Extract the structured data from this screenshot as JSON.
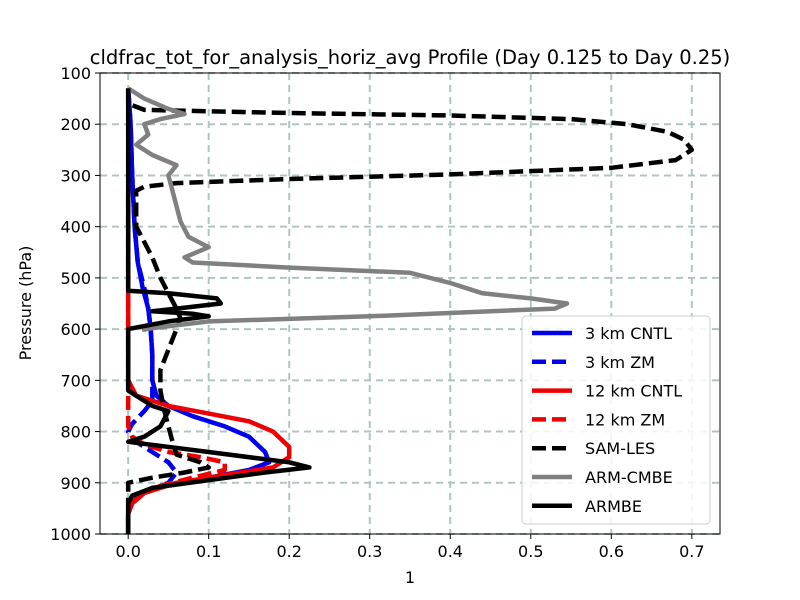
{
  "chart_data": {
    "type": "line",
    "title": "cldfrac_tot_for_analysis_horiz_avg Profile (Day 0.125 to Day 0.25)",
    "xlabel": "1",
    "ylabel": "Pressure (hPa)",
    "xlim": [
      -0.035,
      0.735
    ],
    "ylim": [
      1000,
      100
    ],
    "y_inverted": true,
    "xticks": [
      0.0,
      0.1,
      0.2,
      0.3,
      0.4,
      0.5,
      0.6,
      0.7
    ],
    "xtick_labels": [
      "0.0",
      "0.1",
      "0.2",
      "0.3",
      "0.4",
      "0.5",
      "0.6",
      "0.7"
    ],
    "yticks": [
      100,
      200,
      300,
      400,
      500,
      600,
      700,
      800,
      900,
      1000
    ],
    "ytick_labels": [
      "100",
      "200",
      "300",
      "400",
      "500",
      "600",
      "700",
      "800",
      "900",
      "1000"
    ],
    "grid": true,
    "legend_position": "lower-right",
    "series": [
      {
        "name": "3 km CNTL",
        "color": "#0000ee",
        "dash": "solid",
        "points": [
          [
            0.0,
            130
          ],
          [
            0.003,
            200
          ],
          [
            0.005,
            300
          ],
          [
            0.008,
            400
          ],
          [
            0.012,
            470
          ],
          [
            0.018,
            520
          ],
          [
            0.025,
            560
          ],
          [
            0.028,
            600
          ],
          [
            0.03,
            650
          ],
          [
            0.03,
            700
          ],
          [
            0.035,
            730
          ],
          [
            0.05,
            750
          ],
          [
            0.08,
            770
          ],
          [
            0.12,
            790
          ],
          [
            0.15,
            810
          ],
          [
            0.17,
            840
          ],
          [
            0.175,
            860
          ],
          [
            0.15,
            875
          ],
          [
            0.1,
            890
          ],
          [
            0.05,
            905
          ],
          [
            0.015,
            920
          ],
          [
            0.005,
            940
          ],
          [
            0.0,
            960
          ],
          [
            0.0,
            1000
          ]
        ]
      },
      {
        "name": "3 km ZM",
        "color": "#0000ee",
        "dash": "dashed",
        "points": [
          [
            0.0,
            130
          ],
          [
            0.003,
            200
          ],
          [
            0.005,
            300
          ],
          [
            0.008,
            400
          ],
          [
            0.012,
            470
          ],
          [
            0.02,
            520
          ],
          [
            0.025,
            560
          ],
          [
            0.028,
            600
          ],
          [
            0.03,
            650
          ],
          [
            0.03,
            700
          ],
          [
            0.03,
            740
          ],
          [
            0.02,
            760
          ],
          [
            0.005,
            785
          ],
          [
            0.0,
            800
          ],
          [
            0.01,
            820
          ],
          [
            0.03,
            840
          ],
          [
            0.05,
            860
          ],
          [
            0.06,
            880
          ],
          [
            0.05,
            900
          ],
          [
            0.02,
            920
          ],
          [
            0.005,
            940
          ],
          [
            0.0,
            960
          ],
          [
            0.0,
            1000
          ]
        ]
      },
      {
        "name": "12 km CNTL",
        "color": "#ee0000",
        "dash": "solid",
        "points": [
          [
            0.0,
            330
          ],
          [
            0.0,
            400
          ],
          [
            0.0,
            500
          ],
          [
            0.0,
            600
          ],
          [
            0.0,
            700
          ],
          [
            0.01,
            730
          ],
          [
            0.05,
            750
          ],
          [
            0.1,
            765
          ],
          [
            0.15,
            780
          ],
          [
            0.18,
            800
          ],
          [
            0.2,
            830
          ],
          [
            0.2,
            850
          ],
          [
            0.18,
            870
          ],
          [
            0.12,
            885
          ],
          [
            0.06,
            900
          ],
          [
            0.02,
            920
          ],
          [
            0.005,
            940
          ],
          [
            0.0,
            960
          ],
          [
            0.0,
            1000
          ]
        ]
      },
      {
        "name": "12 km ZM",
        "color": "#ee0000",
        "dash": "dashed",
        "points": [
          [
            0.0,
            340
          ],
          [
            0.0,
            400
          ],
          [
            0.0,
            500
          ],
          [
            0.0,
            600
          ],
          [
            0.0,
            700
          ],
          [
            0.0,
            760
          ],
          [
            0.0,
            790
          ],
          [
            0.005,
            810
          ],
          [
            0.02,
            825
          ],
          [
            0.05,
            840
          ],
          [
            0.09,
            850
          ],
          [
            0.12,
            860
          ],
          [
            0.12,
            875
          ],
          [
            0.08,
            890
          ],
          [
            0.03,
            910
          ],
          [
            0.01,
            930
          ],
          [
            0.0,
            950
          ],
          [
            0.0,
            1000
          ]
        ]
      },
      {
        "name": "SAM-LES",
        "color": "#000000",
        "dash": "dashed",
        "points": [
          [
            0.0,
            130
          ],
          [
            0.0,
            160
          ],
          [
            0.02,
            172
          ],
          [
            0.2,
            178
          ],
          [
            0.4,
            183
          ],
          [
            0.55,
            190
          ],
          [
            0.62,
            200
          ],
          [
            0.67,
            215
          ],
          [
            0.69,
            230
          ],
          [
            0.7,
            250
          ],
          [
            0.68,
            270
          ],
          [
            0.6,
            285
          ],
          [
            0.4,
            298
          ],
          [
            0.2,
            307
          ],
          [
            0.06,
            315
          ],
          [
            0.02,
            322
          ],
          [
            0.01,
            330
          ],
          [
            0.01,
            360
          ],
          [
            0.01,
            400
          ],
          [
            0.02,
            430
          ],
          [
            0.03,
            460
          ],
          [
            0.04,
            500
          ],
          [
            0.05,
            530
          ],
          [
            0.06,
            560
          ],
          [
            0.065,
            580
          ],
          [
            0.06,
            600
          ],
          [
            0.05,
            640
          ],
          [
            0.04,
            680
          ],
          [
            0.04,
            720
          ],
          [
            0.045,
            760
          ],
          [
            0.05,
            790
          ],
          [
            0.055,
            820
          ],
          [
            0.06,
            845
          ],
          [
            0.09,
            860
          ],
          [
            0.1,
            870
          ],
          [
            0.07,
            880
          ],
          [
            0.03,
            890
          ],
          [
            0.0,
            900
          ],
          [
            0.0,
            1000
          ]
        ]
      },
      {
        "name": "ARM-CMBE",
        "color": "#808080",
        "dash": "solid",
        "points": [
          [
            0.0,
            130
          ],
          [
            0.02,
            150
          ],
          [
            0.05,
            170
          ],
          [
            0.07,
            180
          ],
          [
            0.04,
            190
          ],
          [
            0.02,
            200
          ],
          [
            0.025,
            220
          ],
          [
            0.01,
            240
          ],
          [
            0.03,
            260
          ],
          [
            0.06,
            280
          ],
          [
            0.05,
            300
          ],
          [
            0.055,
            330
          ],
          [
            0.06,
            360
          ],
          [
            0.065,
            390
          ],
          [
            0.075,
            420
          ],
          [
            0.1,
            440
          ],
          [
            0.07,
            460
          ],
          [
            0.08,
            470
          ],
          [
            0.2,
            480
          ],
          [
            0.35,
            490
          ],
          [
            0.4,
            510
          ],
          [
            0.44,
            530
          ],
          [
            0.5,
            540
          ],
          [
            0.545,
            550
          ],
          [
            0.53,
            560
          ],
          [
            0.3,
            575
          ],
          [
            0.1,
            585
          ],
          [
            0.02,
            600
          ],
          [
            0.02,
            605
          ]
        ]
      },
      {
        "name": "ARMBE",
        "color": "#000000",
        "dash": "solid",
        "points": [
          [
            0.0,
            130
          ],
          [
            0.0,
            300
          ],
          [
            0.0,
            400
          ],
          [
            0.0,
            500
          ],
          [
            0.0,
            525
          ],
          [
            0.05,
            530
          ],
          [
            0.11,
            540
          ],
          [
            0.115,
            550
          ],
          [
            0.06,
            560
          ],
          [
            0.03,
            565
          ],
          [
            0.08,
            570
          ],
          [
            0.1,
            575
          ],
          [
            0.05,
            585
          ],
          [
            0.0,
            600
          ],
          [
            0.0,
            650
          ],
          [
            0.0,
            700
          ],
          [
            0.0,
            720
          ],
          [
            0.01,
            730
          ],
          [
            0.03,
            750
          ],
          [
            0.05,
            760
          ],
          [
            0.04,
            790
          ],
          [
            0.02,
            810
          ],
          [
            0.0,
            820
          ],
          [
            0.1,
            840
          ],
          [
            0.2,
            860
          ],
          [
            0.225,
            870
          ],
          [
            0.17,
            880
          ],
          [
            0.1,
            895
          ],
          [
            0.03,
            910
          ],
          [
            0.005,
            925
          ],
          [
            0.0,
            940
          ],
          [
            0.0,
            1000
          ]
        ]
      }
    ]
  }
}
